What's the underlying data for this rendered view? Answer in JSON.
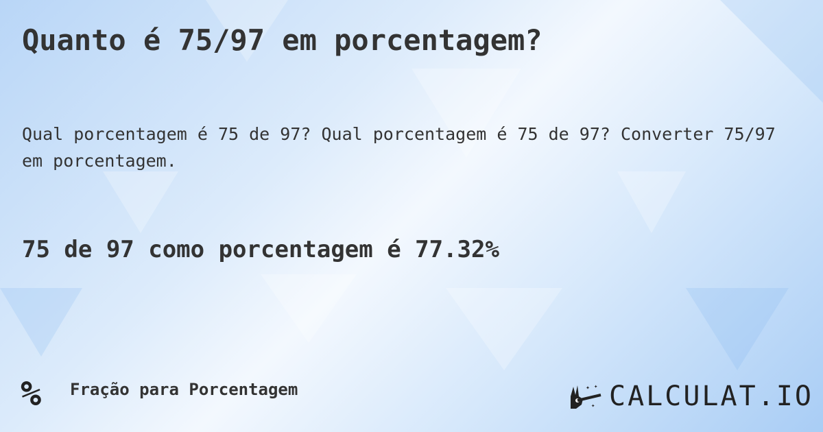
{
  "title": "Quanto é 75/97 em porcentagem?",
  "description": "Qual porcentagem é 75 de 97? Qual porcentagem é 75 de 97? Converter 75/97 em porcentagem.",
  "answer": "75 de 97 como porcentagem é 77.32%",
  "footer": {
    "category_icon": "percent-icon",
    "category_symbol": "%",
    "category_label": "Fração para Porcentagem"
  },
  "logo": {
    "text": "CALCULAT.IO",
    "icon": "magic-hand-icon"
  }
}
